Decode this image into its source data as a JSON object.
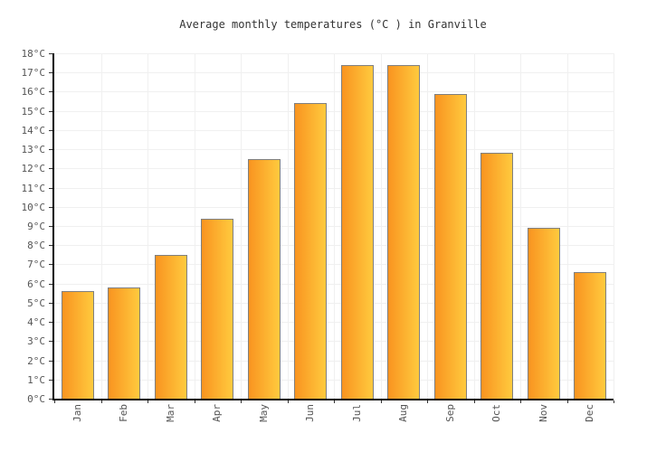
{
  "title": "Average monthly temperatures (°C ) in Granville",
  "chart_data": {
    "type": "bar",
    "title": "Average monthly temperatures (°C ) in Granville",
    "categories": [
      "Jan",
      "Feb",
      "Mar",
      "Apr",
      "May",
      "Jun",
      "Jul",
      "Aug",
      "Sep",
      "Oct",
      "Nov",
      "Dec"
    ],
    "values": [
      5.6,
      5.8,
      7.5,
      9.4,
      12.5,
      15.4,
      17.4,
      17.4,
      15.9,
      12.8,
      8.9,
      6.6
    ],
    "xlabel": "",
    "ylabel": "",
    "ylim": [
      0,
      18
    ],
    "ytick_step": 1,
    "ytick_suffix": "°C",
    "grid": true,
    "legend": "none",
    "colors": {
      "bar_gradient_left": "#F99420",
      "bar_gradient_right": "#FFCA3E",
      "bar_border": "#7F7F7F",
      "grid_color": "#F0F0F0",
      "axis_color": "#000000",
      "tick_color": "#333333",
      "label_color": "#555555",
      "title_color": "#333333",
      "background": "#FFFFFF"
    }
  }
}
